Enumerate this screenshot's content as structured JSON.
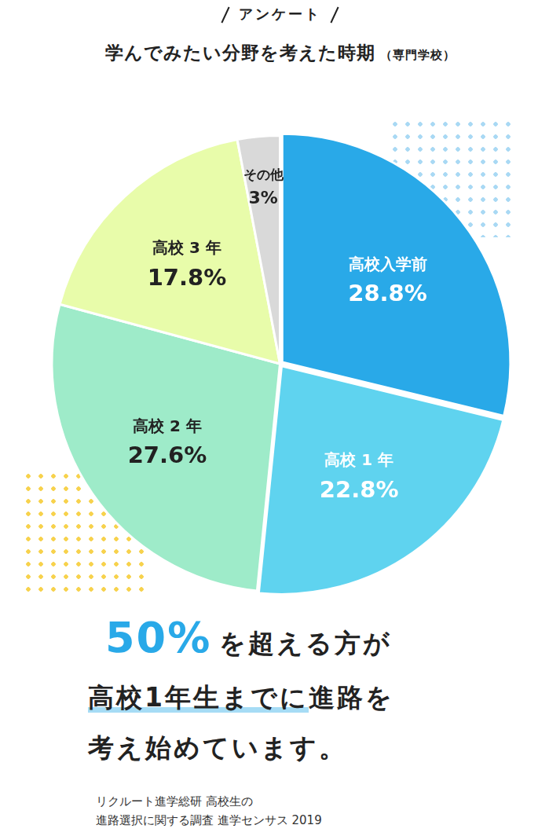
{
  "chart_data": {
    "type": "pie",
    "header": "アンケート",
    "title": "学んでみたい分野を考えた時期",
    "subtitle": "（専門学校）",
    "categories": [
      "高校入学前",
      "高校 1 年",
      "高校 2 年",
      "高校 3 年",
      "その他"
    ],
    "values": [
      28.8,
      22.8,
      27.6,
      17.8,
      3
    ],
    "value_labels": [
      "28.8%",
      "22.8%",
      "27.6%",
      "17.8%",
      "3%"
    ],
    "colors": [
      "#29a9e8",
      "#5fd3ef",
      "#9eebc9",
      "#e8fcaa",
      "#d9d9d9"
    ],
    "data_labels": true,
    "annotations": [
      "50%",
      "を超える方が",
      "高校1年生までに",
      "進路を",
      "考え始めています。"
    ],
    "source": [
      "リクルート進学総研 高校生の",
      "進路選択に関する調査 進学センサス 2019"
    ]
  }
}
